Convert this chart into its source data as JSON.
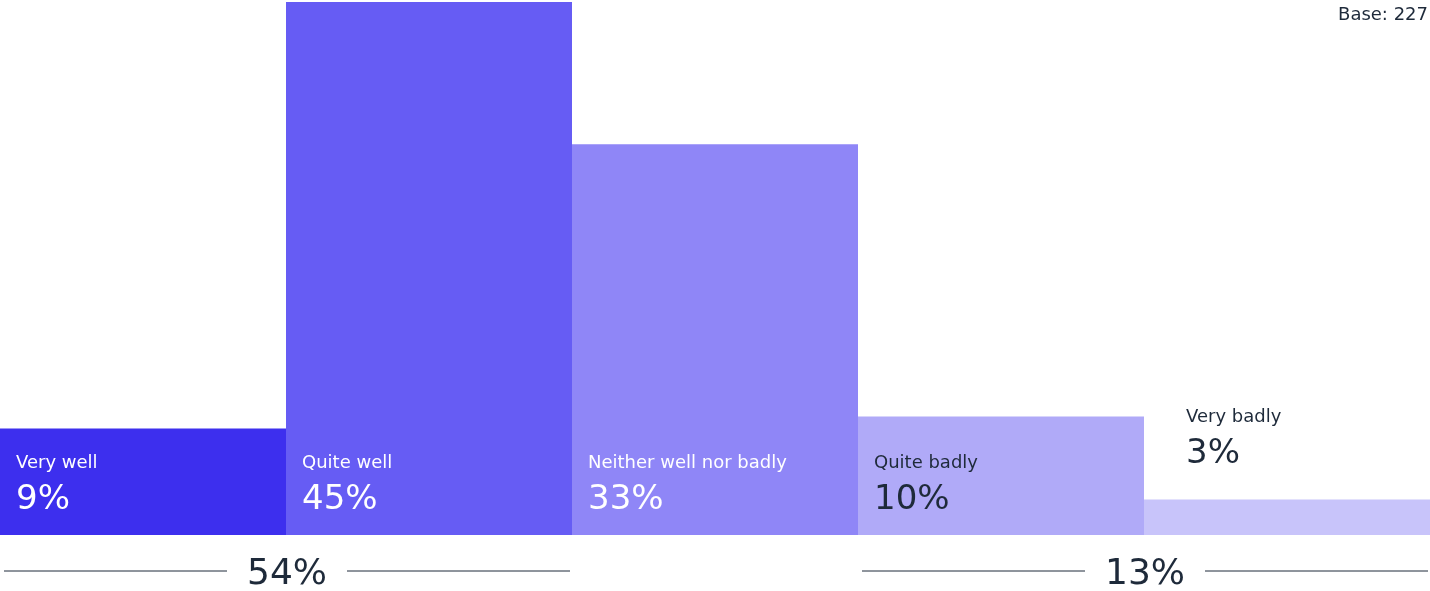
{
  "chart_data": {
    "type": "bar",
    "categories": [
      "Very well",
      "Quite well",
      "Neither well nor badly",
      "Quite badly",
      "Very badly"
    ],
    "values": [
      9,
      45,
      33,
      10,
      3
    ],
    "value_labels": [
      "9%",
      "45%",
      "33%",
      "10%",
      "3%"
    ],
    "colors": [
      "#3d2fee",
      "#665cf4",
      "#8f86f7",
      "#b0aaf8",
      "#c8c4fa"
    ],
    "ylim": [
      0,
      45
    ],
    "tick_labels": false,
    "annotations": [
      "Base: 227",
      "54%",
      "13%"
    ]
  }
}
